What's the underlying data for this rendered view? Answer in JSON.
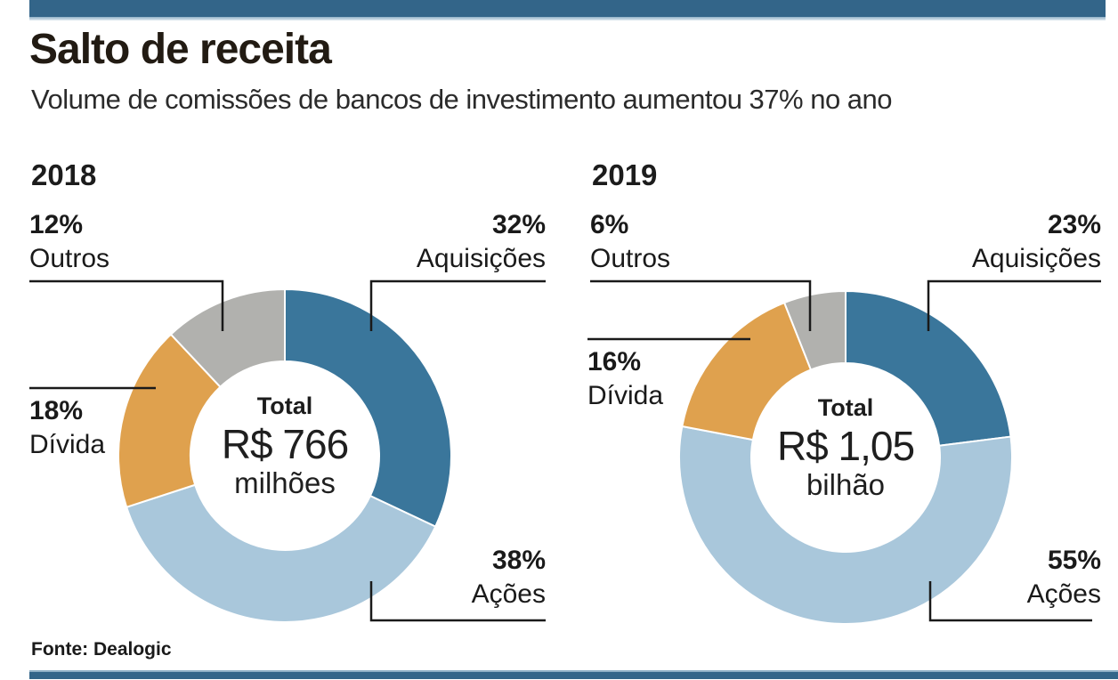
{
  "header": {
    "title": "Salto de receita",
    "subtitle": "Volume de comissões de bancos de investimento aumentou 37% no ano"
  },
  "footer": {
    "source": "Fonte: Dealogic"
  },
  "colors": {
    "brand_bar_blue": "#336589",
    "acquisitions_blue": "#3a769b",
    "equities_light_blue": "#a9c7db",
    "debt_orange": "#dfa14e",
    "others_gray": "#b1b1ae",
    "leader_line_black": "#1a1a1a"
  },
  "chart_data": [
    {
      "type": "pie",
      "subtype": "donut",
      "title": "2018",
      "year": "2018",
      "direction": "clockwise",
      "start_angle_deg": 0,
      "center": {
        "label": "Total",
        "value": "R$ 766",
        "unit": "milhões"
      },
      "segments": [
        {
          "label": "Aquisições",
          "pct": 32,
          "pct_label": "32%",
          "color": "#3a769b"
        },
        {
          "label": "Ações",
          "pct": 38,
          "pct_label": "38%",
          "color": "#a9c7db"
        },
        {
          "label": "Dívida",
          "pct": 18,
          "pct_label": "18%",
          "color": "#dfa14e"
        },
        {
          "label": "Outros",
          "pct": 12,
          "pct_label": "12%",
          "color": "#b1b1ae"
        }
      ]
    },
    {
      "type": "pie",
      "subtype": "donut",
      "title": "2019",
      "year": "2019",
      "direction": "clockwise",
      "start_angle_deg": 0,
      "center": {
        "label": "Total",
        "value": "R$ 1,05",
        "unit": "bilhão"
      },
      "segments": [
        {
          "label": "Aquisições",
          "pct": 23,
          "pct_label": "23%",
          "color": "#3a769b"
        },
        {
          "label": "Ações",
          "pct": 55,
          "pct_label": "55%",
          "color": "#a9c7db"
        },
        {
          "label": "Dívida",
          "pct": 16,
          "pct_label": "16%",
          "color": "#dfa14e"
        },
        {
          "label": "Outros",
          "pct": 6,
          "pct_label": "6%",
          "color": "#b1b1ae"
        }
      ]
    }
  ]
}
